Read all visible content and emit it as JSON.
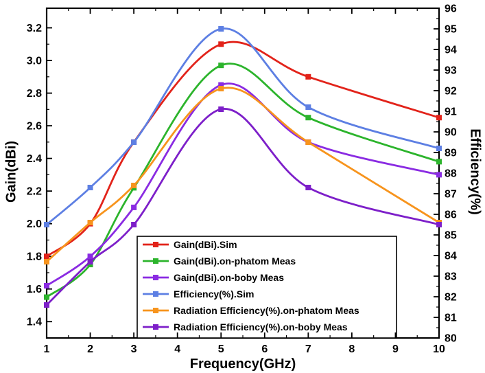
{
  "figure": {
    "background": "#ffffff",
    "axis_color": "#000000"
  },
  "chart_data": {
    "type": "line",
    "title": "",
    "xlabel": "Frequency(GHz)",
    "ylabel_left": "Gain(dBi)",
    "ylabel_right": "Efficiency(%)",
    "grid": false,
    "legend_position": "inside-bottom-center",
    "x_axis": {
      "min": 1,
      "max": 10,
      "ticks": [
        1,
        2,
        3,
        4,
        5,
        6,
        7,
        8,
        9,
        10
      ]
    },
    "left_axis": {
      "min": 1.3,
      "max": 3.32,
      "tick_labels": [
        "1.4",
        "1.6",
        "1.8",
        "2.0",
        "2.2",
        "2.4",
        "2.6",
        "2.8",
        "3.0",
        "3.2"
      ]
    },
    "right_axis": {
      "min": 80,
      "max": 96,
      "ticks": [
        80,
        81,
        82,
        83,
        84,
        85,
        86,
        87,
        88,
        89,
        90,
        91,
        92,
        93,
        94,
        95,
        96
      ]
    },
    "x": [
      1,
      2,
      3,
      5,
      7,
      10
    ],
    "series": [
      {
        "name": "Gain(dBi).Sim",
        "axis": "left",
        "color": "#e2231a",
        "marker": "square",
        "values": [
          1.8,
          2.0,
          2.5,
          3.1,
          2.9,
          2.65
        ]
      },
      {
        "name": "Gain(dBi).on-phatom Meas",
        "axis": "left",
        "color": "#2cb42c",
        "marker": "square",
        "values": [
          1.55,
          1.75,
          2.22,
          2.97,
          2.65,
          2.38
        ]
      },
      {
        "name": "Gain(dBi).on-boby Meas",
        "axis": "left",
        "color": "#8a2be2",
        "marker": "square",
        "values": [
          1.62,
          1.8,
          2.1,
          2.85,
          2.5,
          2.3
        ]
      },
      {
        "name": "Efficiency(%).Sim",
        "axis": "right",
        "color": "#5d7fe3",
        "marker": "square",
        "values": [
          85.5,
          87.3,
          89.5,
          95.0,
          91.2,
          89.2
        ]
      },
      {
        "name": "Radiation Efficiency(%).on-phatom Meas",
        "axis": "right",
        "color": "#f7941d",
        "marker": "square",
        "values": [
          83.7,
          85.6,
          87.4,
          92.1,
          89.5,
          85.6
        ]
      },
      {
        "name": "Radiation Efficiency(%).on-boby Meas",
        "axis": "right",
        "color": "#7d1fc9",
        "marker": "square",
        "values": [
          81.6,
          83.7,
          85.5,
          91.1,
          87.3,
          85.5
        ]
      }
    ]
  }
}
